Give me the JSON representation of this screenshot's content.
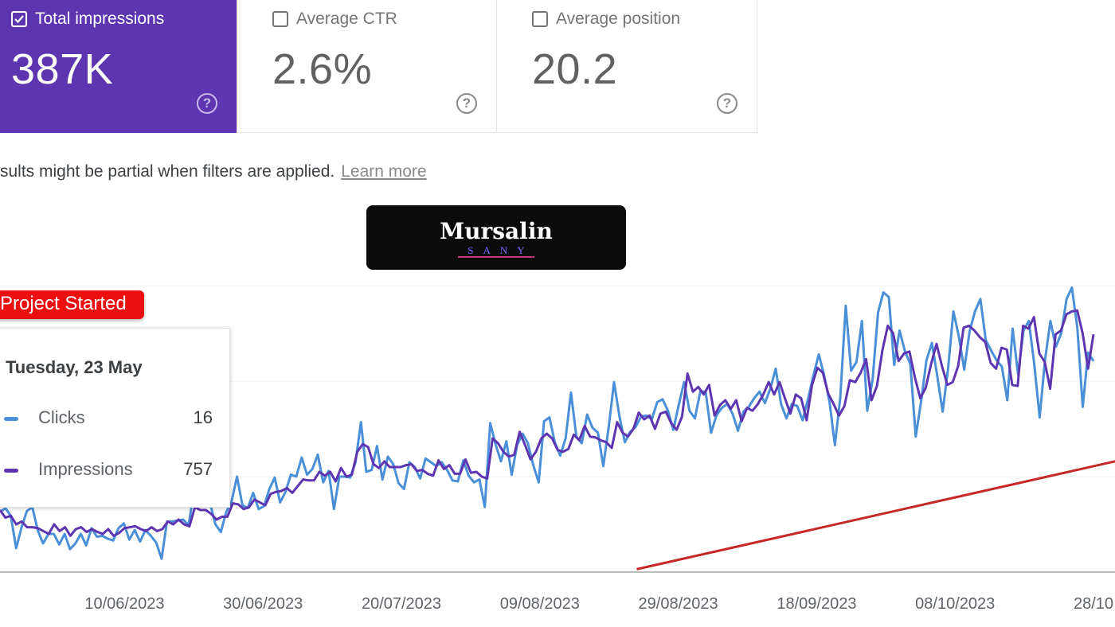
{
  "cards": [
    {
      "label": "Total impressions",
      "value": "387K",
      "checked": true
    },
    {
      "label": "Average CTR",
      "value": "2.6%",
      "checked": false
    },
    {
      "label": "Average position",
      "value": "20.2",
      "checked": false
    }
  ],
  "notice": {
    "text": "sults might be partial when filters are applied.",
    "link": "Learn more"
  },
  "watermark": {
    "main": "Mursalin",
    "sub": "SANY"
  },
  "annotation": {
    "label": "Project Started"
  },
  "tooltip": {
    "date": "Tuesday, 23 May",
    "rows": [
      {
        "name": "Clicks",
        "value": "16",
        "color": "#4a90d9"
      },
      {
        "name": "Impressions",
        "value": "757",
        "color": "#5e35b1"
      }
    ]
  },
  "colors": {
    "clicks": "#4a90d9",
    "impressions": "#5e35b1",
    "trend": "#c62828",
    "card_active": "#5e35b1",
    "flag": "#ec0f0f"
  },
  "chart_data": {
    "type": "line",
    "x_start": "2023-05-23",
    "x_end": "2023-10-28",
    "x_tick_labels": [
      "10/06/2023",
      "30/06/2023",
      "20/07/2023",
      "09/08/2023",
      "29/08/2023",
      "18/09/2023",
      "08/10/2023",
      "28/10"
    ],
    "x_tick_dates": [
      "2023-06-10",
      "2023-06-30",
      "2023-07-20",
      "2023-08-09",
      "2023-08-29",
      "2023-09-18",
      "2023-10-08",
      "2023-10-28"
    ],
    "y_range": [
      0,
      3
    ],
    "y_axis_labels_shown": false,
    "grid": true,
    "legend": "none",
    "series": [
      {
        "name": "Clicks",
        "color": "#4a90d9",
        "values": [
          0.63,
          0.67,
          0.59,
          0.25,
          0.47,
          0.64,
          0.68,
          0.44,
          0.3,
          0.4,
          0.4,
          0.29,
          0.4,
          0.24,
          0.3,
          0.4,
          0.28,
          0.46,
          0.37,
          0.38,
          0.35,
          0.33,
          0.46,
          0.51,
          0.34,
          0.44,
          0.32,
          0.44,
          0.38,
          0.31,
          0.14,
          0.53,
          0.53,
          0.54,
          0.55,
          0.49,
          0.84,
          0.88,
          0.7,
          0.72,
          0.5,
          0.42,
          0.63,
          0.74,
          1.0,
          0.7,
          0.67,
          0.83,
          0.66,
          0.69,
          0.87,
          0.99,
          0.73,
          0.84,
          1.02,
          1.0,
          1.2,
          1.02,
          1.08,
          1.23,
          0.94,
          1.06,
          0.66,
          1.0,
          1.0,
          0.99,
          1.15,
          1.57,
          1.05,
          1.07,
          1.32,
          0.97,
          1.21,
          1.13,
          0.93,
          0.87,
          1.15,
          1.1,
          0.98,
          1.19,
          1.15,
          1.11,
          1.15,
          1.07,
          0.96,
          0.95,
          1.17,
          1.01,
          0.94,
          0.97,
          0.68,
          1.56,
          1.34,
          1.16,
          1.37,
          1.02,
          1.33,
          1.45,
          1.35,
          1.12,
          0.94,
          1.58,
          1.62,
          1.36,
          1.22,
          1.4,
          1.88,
          1.42,
          1.35,
          1.65,
          1.51,
          1.46,
          1.11,
          1.52,
          1.99,
          1.63,
          1.36,
          1.47,
          1.52,
          1.63,
          1.64,
          1.6,
          1.78,
          1.81,
          1.69,
          1.49,
          1.75,
          1.99,
          1.69,
          1.61,
          1.89,
          1.89,
          1.46,
          1.64,
          1.72,
          1.76,
          1.66,
          1.48,
          1.68,
          1.73,
          1.82,
          1.89,
          1.77,
          1.92,
          2.13,
          1.76,
          1.61,
          1.76,
          1.74,
          1.59,
          1.81,
          2.06,
          2.28,
          2.06,
          1.78,
          1.33,
          1.83,
          2.79,
          2.11,
          2.2,
          2.63,
          1.69,
          2.02,
          2.72,
          2.93,
          2.88,
          2.17,
          2.53,
          2.31,
          2.18,
          1.42,
          1.79,
          2.22,
          2.4,
          2.05,
          1.68,
          2.13,
          2.73,
          2.47,
          2.12,
          2.52,
          2.73,
          2.86,
          2.43,
          2.32,
          2.22,
          2.15,
          1.8,
          2.55,
          2.07,
          2.53,
          2.63,
          2.18,
          1.62,
          2.22,
          2.63,
          2.36,
          2.5,
          2.86,
          2.98,
          2.56,
          1.73,
          2.3,
          2.21
        ]
      },
      {
        "name": "Impressions",
        "color": "#5e35b1",
        "values": [
          0.65,
          0.57,
          0.59,
          0.5,
          0.53,
          0.47,
          0.47,
          0.46,
          0.43,
          0.4,
          0.5,
          0.43,
          0.47,
          0.38,
          0.45,
          0.47,
          0.42,
          0.45,
          0.42,
          0.4,
          0.45,
          0.38,
          0.41,
          0.46,
          0.47,
          0.48,
          0.45,
          0.43,
          0.47,
          0.43,
          0.45,
          0.53,
          0.5,
          0.55,
          0.5,
          0.48,
          0.68,
          0.65,
          0.65,
          0.61,
          0.55,
          0.58,
          0.58,
          0.72,
          0.71,
          0.66,
          0.68,
          0.76,
          0.73,
          0.7,
          0.82,
          0.84,
          0.85,
          0.88,
          0.83,
          0.9,
          0.97,
          0.96,
          0.96,
          1.05,
          1.01,
          1.05,
          0.95,
          1.09,
          1.0,
          1.02,
          1.26,
          1.34,
          1.31,
          1.13,
          1.09,
          1.16,
          1.1,
          1.1,
          1.1,
          1.12,
          1.13,
          1.06,
          1.07,
          1.03,
          1.01,
          1.17,
          1.08,
          1.12,
          1.03,
          1.03,
          1.18,
          1.04,
          1.05,
          1.0,
          0.98,
          1.4,
          1.35,
          1.26,
          1.21,
          1.23,
          1.47,
          1.33,
          1.18,
          1.26,
          1.4,
          1.45,
          1.4,
          1.28,
          1.26,
          1.29,
          1.44,
          1.38,
          1.53,
          1.42,
          1.41,
          1.38,
          1.36,
          1.3,
          1.57,
          1.46,
          1.42,
          1.5,
          1.67,
          1.6,
          1.64,
          1.5,
          1.66,
          1.68,
          1.56,
          1.49,
          1.63,
          2.08,
          1.89,
          1.94,
          1.86,
          1.96,
          1.64,
          1.75,
          1.8,
          1.71,
          1.8,
          1.58,
          1.72,
          1.69,
          1.76,
          1.86,
          1.99,
          1.86,
          1.99,
          1.82,
          1.66,
          1.86,
          1.82,
          1.59,
          1.96,
          2.14,
          2.09,
          1.87,
          1.76,
          1.64,
          1.74,
          2.01,
          1.99,
          2.09,
          2.23,
          1.8,
          1.95,
          2.32,
          2.58,
          2.5,
          2.21,
          2.29,
          2.31,
          2.04,
          1.82,
          1.93,
          2.18,
          2.39,
          2.16,
          1.96,
          1.99,
          2.16,
          2.56,
          2.58,
          2.53,
          2.46,
          2.41,
          2.19,
          2.13,
          2.35,
          2.33,
          1.96,
          1.95,
          2.58,
          2.55,
          2.67,
          2.29,
          2.2,
          1.92,
          2.49,
          2.53,
          2.7,
          2.73,
          2.74,
          2.5,
          2.13,
          2.49
        ]
      }
    ],
    "trend_line": {
      "from": {
        "date": "2023-08-23",
        "value": 0.03
      },
      "to": {
        "date": "2023-10-28",
        "value": 1.16
      }
    }
  }
}
